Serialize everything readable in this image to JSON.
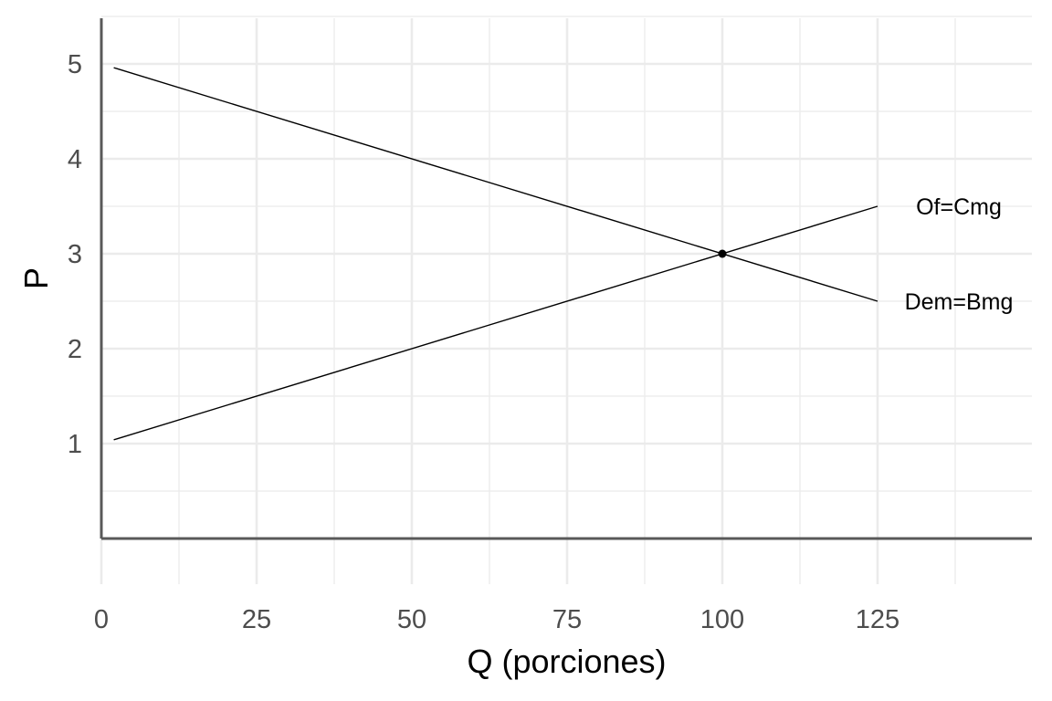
{
  "chart_data": {
    "type": "line",
    "xlabel": "Q (porciones)",
    "ylabel": "P",
    "xlim": [
      0,
      150
    ],
    "ylim": [
      0,
      5.5
    ],
    "x_ticks": [
      0,
      25,
      50,
      75,
      100,
      125
    ],
    "y_ticks": [
      1,
      2,
      3,
      4,
      5
    ],
    "grid": true,
    "series": [
      {
        "name": "Of=Cmg",
        "x": [
          2,
          125
        ],
        "y": [
          1.04,
          3.5
        ]
      },
      {
        "name": "Dem=Bmg",
        "x": [
          2,
          125
        ],
        "y": [
          4.96,
          2.5
        ]
      }
    ],
    "annotations": [
      {
        "type": "point",
        "x": 100,
        "y": 3
      }
    ]
  }
}
